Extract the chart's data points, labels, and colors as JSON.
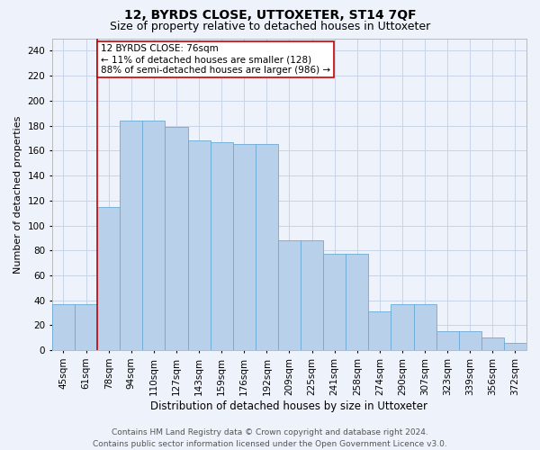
{
  "title": "12, BYRDS CLOSE, UTTOXETER, ST14 7QF",
  "subtitle": "Size of property relative to detached houses in Uttoxeter",
  "xlabel": "Distribution of detached houses by size in Uttoxeter",
  "ylabel": "Number of detached properties",
  "categories": [
    "45sqm",
    "61sqm",
    "78sqm",
    "94sqm",
    "110sqm",
    "127sqm",
    "143sqm",
    "159sqm",
    "176sqm",
    "192sqm",
    "209sqm",
    "225sqm",
    "241sqm",
    "258sqm",
    "274sqm",
    "290sqm",
    "307sqm",
    "323sqm",
    "339sqm",
    "356sqm",
    "372sqm"
  ],
  "values": [
    37,
    37,
    115,
    184,
    184,
    179,
    168,
    167,
    165,
    165,
    88,
    88,
    77,
    77,
    31,
    37,
    37,
    15,
    15,
    10,
    6
  ],
  "bar_color": "#b8d0ea",
  "bar_edge_color": "#6aaad4",
  "grid_color": "#c8d4e8",
  "background_color": "#eef2fa",
  "vline_x_index": 2,
  "vline_color": "#cc0000",
  "annotation_text": "12 BYRDS CLOSE: 76sqm\n← 11% of detached houses are smaller (128)\n88% of semi-detached houses are larger (986) →",
  "annotation_box_facecolor": "white",
  "annotation_box_edgecolor": "#cc0000",
  "ylim": [
    0,
    250
  ],
  "yticks": [
    0,
    20,
    40,
    60,
    80,
    100,
    120,
    140,
    160,
    180,
    200,
    220,
    240
  ],
  "footer_text": "Contains HM Land Registry data © Crown copyright and database right 2024.\nContains public sector information licensed under the Open Government Licence v3.0.",
  "title_fontsize": 10,
  "subtitle_fontsize": 9,
  "xlabel_fontsize": 8.5,
  "ylabel_fontsize": 8,
  "tick_fontsize": 7.5,
  "annotation_fontsize": 7.5,
  "footer_fontsize": 6.5
}
